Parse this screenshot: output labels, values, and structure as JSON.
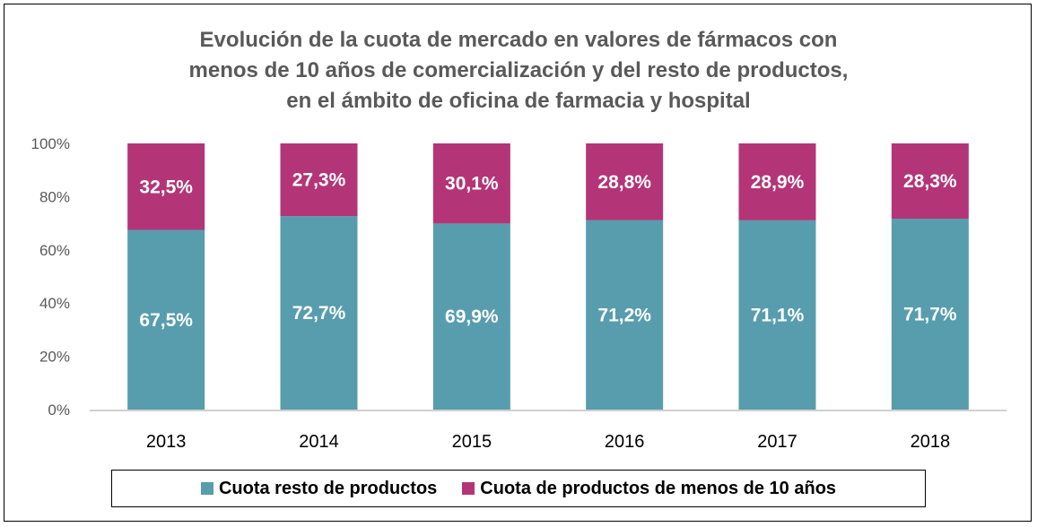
{
  "chart_data": {
    "type": "bar",
    "stacked": true,
    "title_lines": [
      "Evolución de la cuota de mercado en valores de fármacos con",
      "menos de 10 años de comercialización y del resto de productos,",
      "en el ámbito de oficina de farmacia y hospital"
    ],
    "categories": [
      "2013",
      "2014",
      "2015",
      "2016",
      "2017",
      "2018"
    ],
    "series": [
      {
        "name": "Cuota resto de productos",
        "color": "#579DAD",
        "values": [
          67.5,
          72.7,
          69.9,
          71.2,
          71.1,
          71.7
        ],
        "labels": [
          "67,5%",
          "72,7%",
          "69,9%",
          "71,2%",
          "71,1%",
          "71,7%"
        ]
      },
      {
        "name": "Cuota de productos de menos de 10 años",
        "color": "#B33577",
        "values": [
          32.5,
          27.3,
          30.1,
          28.8,
          28.9,
          28.3
        ],
        "labels": [
          "32,5%",
          "27,3%",
          "30,1%",
          "28,8%",
          "28,9%",
          "28,3%"
        ]
      }
    ],
    "y_ticks": [
      "0%",
      "20%",
      "40%",
      "60%",
      "80%",
      "100%"
    ],
    "ylim": [
      0,
      100
    ],
    "grid": false,
    "legend_position": "bottom"
  }
}
